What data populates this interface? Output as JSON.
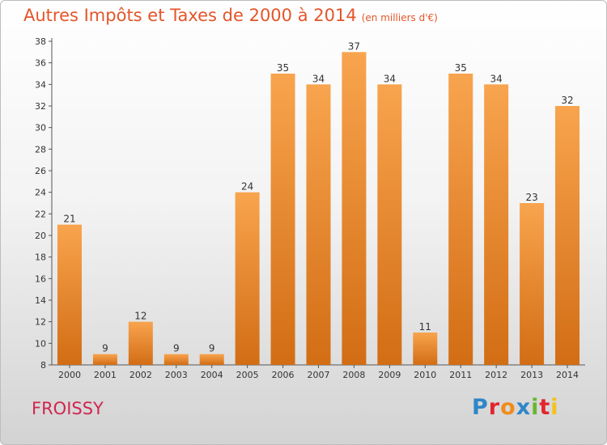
{
  "title": "Autres Impôts et Taxes de 2000 à 2014",
  "title_unit": "(en milliers d'€)",
  "place": "FROISSY",
  "logo": "Proxiti",
  "logo_letters": [
    "P",
    "r",
    "o",
    "x",
    "i",
    "t",
    "i"
  ],
  "colors": {
    "bar_top": "#f8a44e",
    "bar_bottom": "#d26d14",
    "title": "#e4552a",
    "place": "#d0264f"
  },
  "chart_data": {
    "type": "bar",
    "title": "Autres Impôts et Taxes de 2000 à 2014",
    "categories": [
      "2000",
      "2001",
      "2002",
      "2003",
      "2004",
      "2005",
      "2006",
      "2007",
      "2008",
      "2009",
      "2010",
      "2011",
      "2012",
      "2013",
      "2014"
    ],
    "values": [
      21,
      9,
      12,
      9,
      9,
      24,
      35,
      34,
      37,
      34,
      11,
      35,
      34,
      23,
      32
    ],
    "ylim": [
      8,
      38
    ],
    "yticks": [
      8,
      10,
      12,
      14,
      16,
      18,
      20,
      22,
      24,
      26,
      28,
      30,
      32,
      34,
      36,
      38
    ],
    "grid": false,
    "data_labels": true
  }
}
